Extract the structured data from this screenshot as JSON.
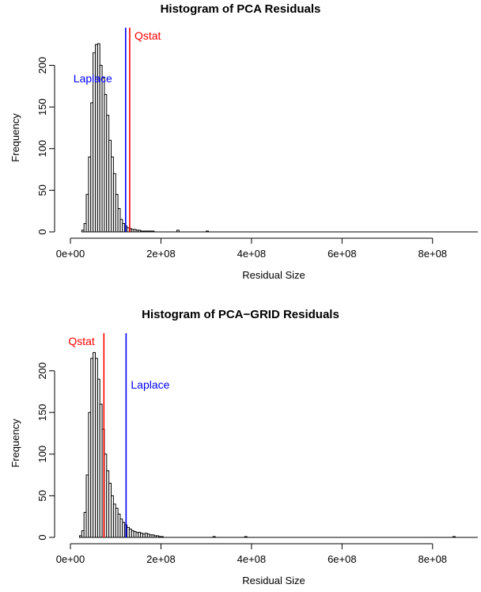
{
  "chart_data": [
    {
      "type": "histogram",
      "title": "Histogram of PCA Residuals",
      "xlabel": "Residual Size",
      "ylabel": "Frequency",
      "xlim": [
        0,
        900000000
      ],
      "ylim": [
        0,
        230
      ],
      "x_ticks": [
        0,
        200000000,
        400000000,
        600000000,
        800000000
      ],
      "x_tick_labels": [
        "0e+00",
        "2e+08",
        "4e+08",
        "6e+08",
        "8e+08"
      ],
      "y_ticks": [
        0,
        50,
        100,
        150,
        200
      ],
      "y_tick_labels": [
        "0",
        "50",
        "100",
        "150",
        "200"
      ],
      "bin_width": 5000000,
      "bins_start": 25000000,
      "counts": [
        2,
        10,
        45,
        90,
        155,
        215,
        225,
        226,
        200,
        185,
        165,
        140,
        110,
        90,
        70,
        45,
        28,
        15,
        10,
        7,
        5,
        4,
        3,
        3,
        2,
        2,
        1,
        1,
        1,
        1,
        1,
        1
      ],
      "extra_bins": [
        [
          235000000,
          2
        ],
        [
          300000000,
          1
        ]
      ],
      "vlines": [
        {
          "label": "Laplace",
          "x": 122000000,
          "color": "#0000ff"
        },
        {
          "label": "Qstat",
          "x": 131000000,
          "color": "#ff0000"
        }
      ]
    },
    {
      "type": "histogram",
      "title": "Histogram of PCA−GRID Residuals",
      "xlabel": "Residual Size",
      "ylabel": "Frequency",
      "xlim": [
        0,
        900000000
      ],
      "ylim": [
        0,
        230
      ],
      "x_ticks": [
        0,
        200000000,
        400000000,
        600000000,
        800000000
      ],
      "x_tick_labels": [
        "0e+00",
        "2e+08",
        "4e+08",
        "6e+08",
        "8e+08"
      ],
      "y_ticks": [
        0,
        50,
        100,
        150,
        200
      ],
      "y_tick_labels": [
        "0",
        "50",
        "100",
        "150",
        "200"
      ],
      "bin_width": 5000000,
      "bins_start": 20000000,
      "counts": [
        2,
        8,
        30,
        75,
        150,
        215,
        222,
        215,
        190,
        160,
        130,
        100,
        80,
        65,
        50,
        40,
        35,
        28,
        22,
        18,
        15,
        12,
        10,
        8,
        7,
        6,
        6,
        5,
        4,
        5,
        4,
        3,
        3,
        2,
        2,
        1,
        1
      ],
      "extra_bins": [
        [
          315000000,
          1
        ],
        [
          385000000,
          1
        ],
        [
          845000000,
          1
        ]
      ],
      "vlines": [
        {
          "label": "Qstat",
          "x": 74000000,
          "color": "#ff0000"
        },
        {
          "label": "Laplace",
          "x": 123000000,
          "color": "#0000ff"
        }
      ]
    }
  ]
}
